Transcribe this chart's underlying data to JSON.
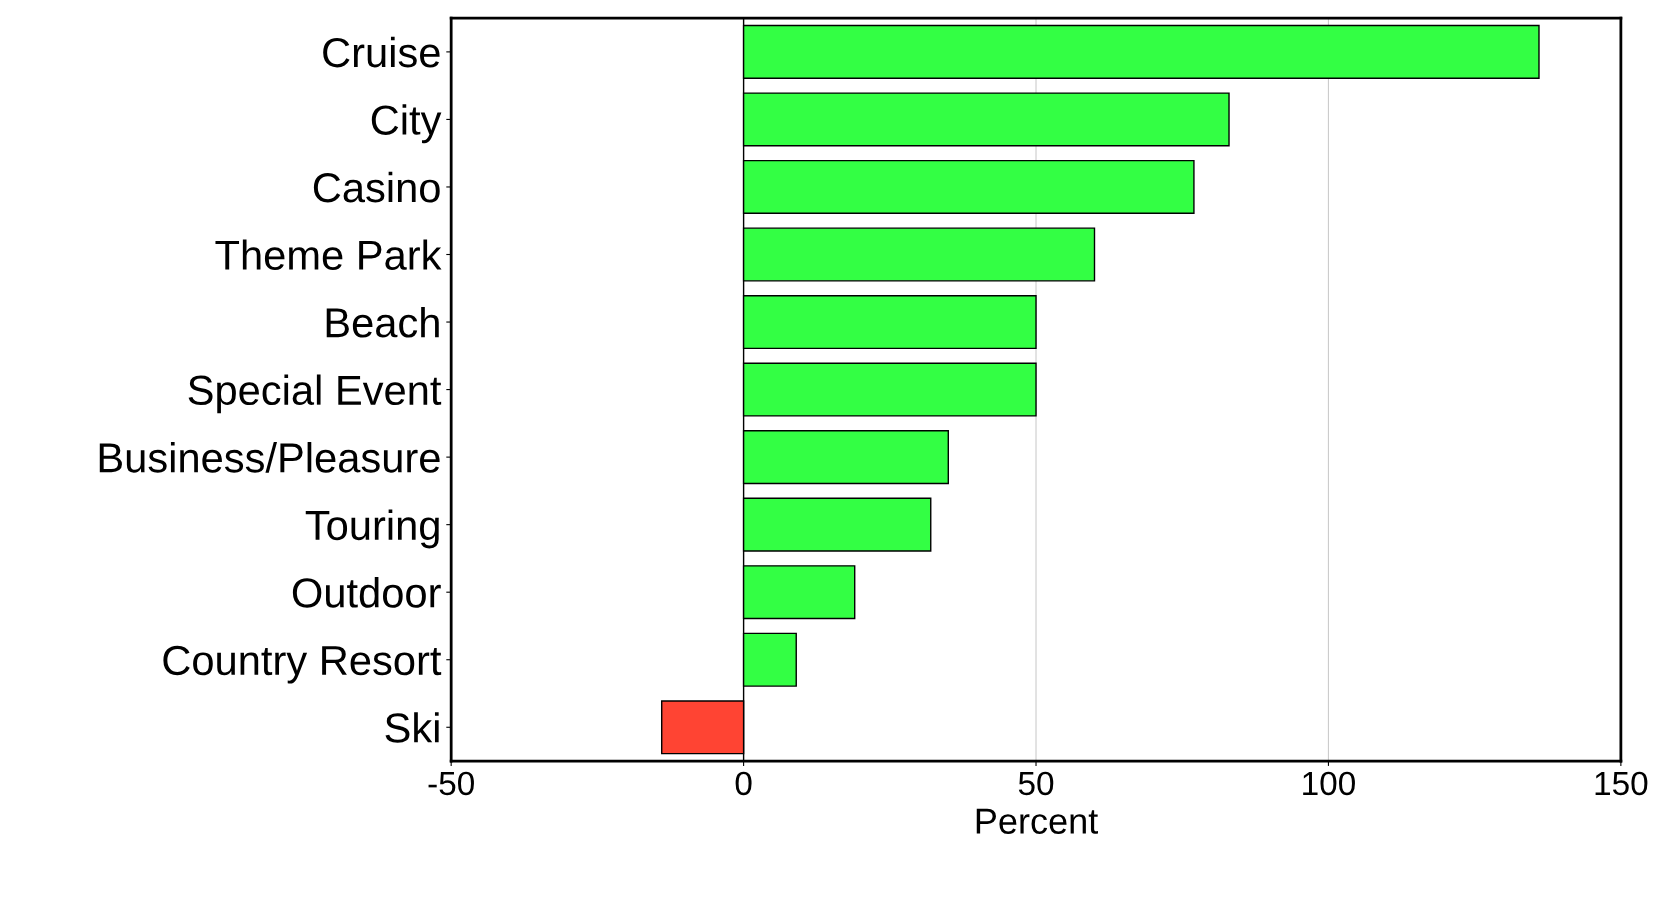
{
  "chart_data": {
    "type": "bar",
    "orientation": "horizontal",
    "xlabel": "Percent",
    "categories": [
      "Cruise",
      "City",
      "Casino",
      "Theme Park",
      "Beach",
      "Special Event",
      "Business/Pleasure",
      "Touring",
      "Outdoor",
      "Country Resort",
      "Ski"
    ],
    "values": [
      136,
      83,
      77,
      60,
      50,
      50,
      35,
      32,
      19,
      9,
      -14
    ],
    "colors": [
      "#33ff44",
      "#33ff44",
      "#33ff44",
      "#33ff44",
      "#33ff44",
      "#33ff44",
      "#33ff44",
      "#33ff44",
      "#33ff44",
      "#33ff44",
      "#ff4433"
    ],
    "xlim": [
      -50,
      150
    ],
    "xticks": [
      -50,
      0,
      50,
      100,
      150
    ],
    "grid": "x"
  }
}
